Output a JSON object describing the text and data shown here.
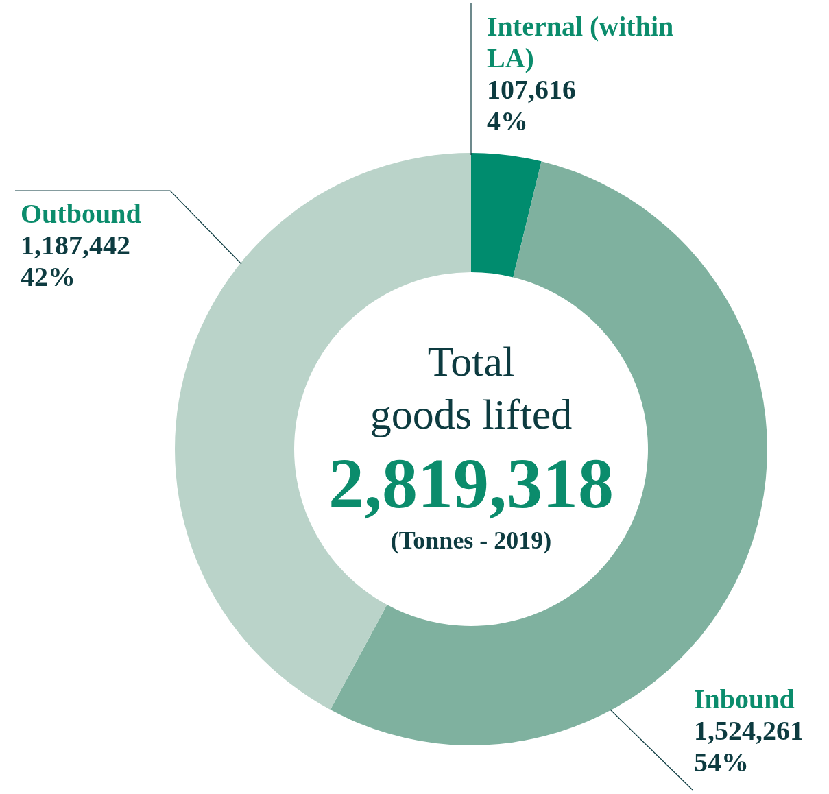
{
  "chart_data": {
    "type": "donut",
    "title": "Total goods lifted",
    "subtitle": "(Tonnes - 2019)",
    "categories": [
      "Internal (within LA)",
      "Inbound",
      "Outbound"
    ],
    "values": [
      107616,
      1524261,
      1187442
    ],
    "colors": [
      "#008c6e",
      "#7fb19f",
      "#bad3c9"
    ],
    "value_labels": [
      "107,616",
      "1,524,261",
      "1,187,442"
    ],
    "annotations": [
      "2,819,318",
      "4%",
      "54%",
      "42%"
    ]
  }
}
